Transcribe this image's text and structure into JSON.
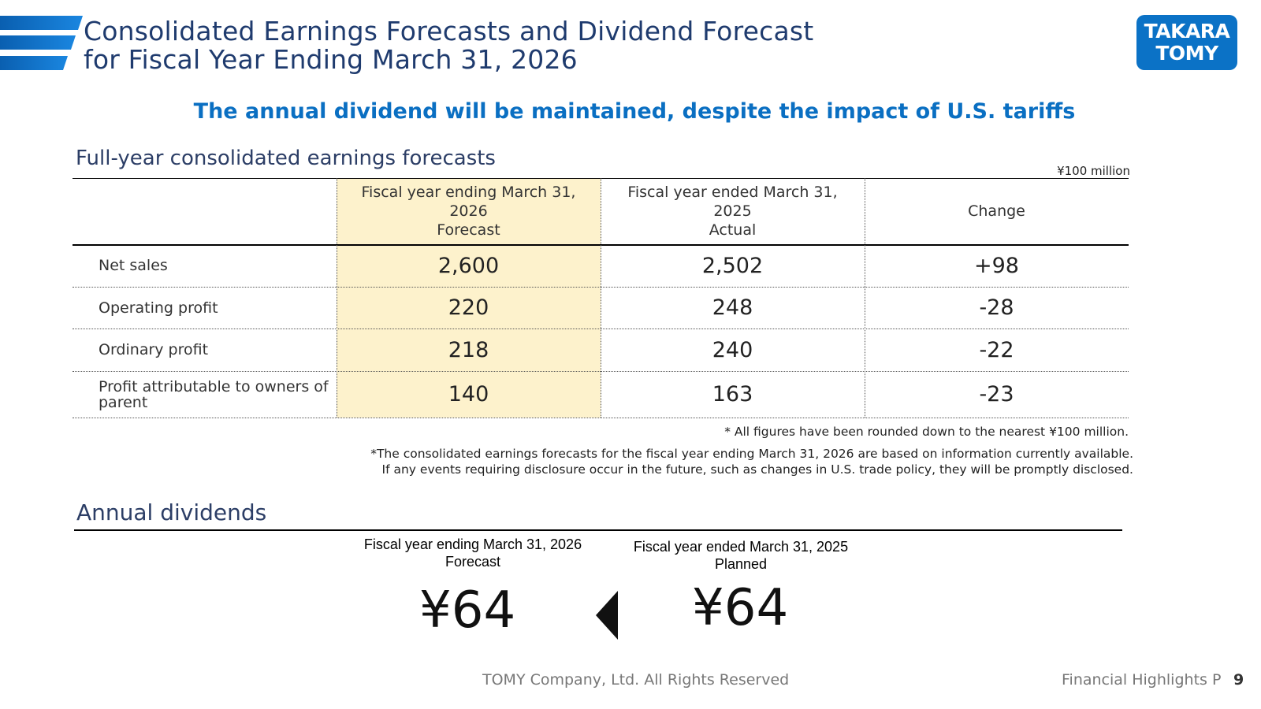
{
  "header": {
    "title_line1": "Consolidated Earnings Forecasts and Dividend Forecast",
    "title_line2": "for Fiscal Year Ending March 31, 2026",
    "logo_line1": "TAKARA",
    "logo_line2": "TOMY",
    "logo_color": "#0b72c6"
  },
  "headline": "The annual dividend will be maintained, despite the impact of U.S. tariffs",
  "earnings": {
    "section_title": "Full-year consolidated earnings forecasts",
    "unit": "¥100 million",
    "columns": [
      {
        "line1": "Fiscal year ending March 31,",
        "line2": "2026",
        "line3": "Forecast"
      },
      {
        "line1": "Fiscal year ended March 31,",
        "line2": "2025",
        "line3": "Actual"
      },
      {
        "line1": "Change"
      }
    ],
    "rows": [
      {
        "label": "Net sales",
        "forecast": "2,600",
        "actual": "2,502",
        "change": "+98"
      },
      {
        "label": "Operating profit",
        "forecast": "220",
        "actual": "248",
        "change": "-28"
      },
      {
        "label": "Ordinary profit",
        "forecast": "218",
        "actual": "240",
        "change": "-22"
      },
      {
        "label": "Profit attributable to owners of parent",
        "forecast": "140",
        "actual": "163",
        "change": "-23"
      }
    ],
    "note1": "* All figures have been rounded down to the nearest ¥100 million.",
    "note2_line1": "*The consolidated earnings forecasts for the fiscal year ending March 31, 2026 are based on information currently available.",
    "note2_line2": "If any events requiring disclosure occur in the future, such as changes in U.S. trade policy, they will be promptly disclosed.",
    "forecast_highlight_color": "#fdf2cc"
  },
  "dividends": {
    "section_title": "Annual dividends",
    "forecast": {
      "line1": "Fiscal year ending March 31, 2026",
      "line2": "Forecast",
      "value": "¥64"
    },
    "planned": {
      "line1": "Fiscal year ended March 31, 2025",
      "line2": "Planned",
      "value": "¥64"
    }
  },
  "footer": {
    "copyright": "TOMY Company, Ltd. All Rights Reserved",
    "section": "Financial Highlights P",
    "page": "9"
  }
}
